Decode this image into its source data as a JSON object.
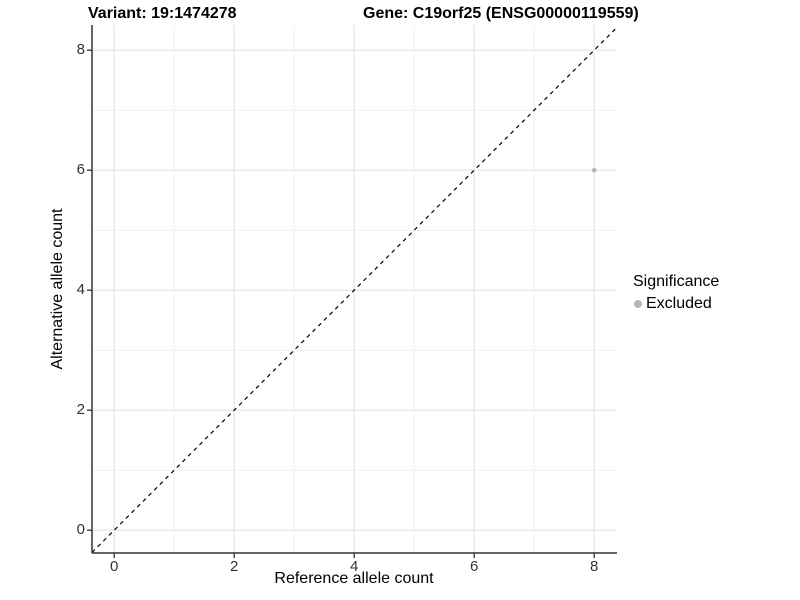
{
  "titles": {
    "variant": "Variant: 19:1474278",
    "gene": "Gene: C19orf25 (ENSG00000119559)"
  },
  "chart_data": {
    "type": "scatter",
    "title_left": "Variant: 19:1474278",
    "title_right": "Gene: C19orf25 (ENSG00000119559)",
    "xlabel": "Reference allele count",
    "ylabel": "Alternative allele count",
    "xlim": [
      -0.37,
      8.38
    ],
    "ylim": [
      -0.38,
      8.42
    ],
    "x_major_ticks": [
      0,
      2,
      4,
      6,
      8
    ],
    "y_major_ticks": [
      0,
      2,
      4,
      6,
      8
    ],
    "x_minor_ticks": [
      1,
      3,
      5,
      7
    ],
    "y_minor_ticks": [
      1,
      3,
      5,
      7
    ],
    "grid": true,
    "reference_line": {
      "type": "identity",
      "slope": 1,
      "intercept": 0,
      "style": "dashed",
      "color": "#000000"
    },
    "series": [
      {
        "name": "Excluded",
        "color": "#b5b5b5",
        "points": [
          {
            "x": 8,
            "y": 6
          }
        ]
      }
    ],
    "legend": {
      "title": "Significance",
      "position": "right",
      "entries": [
        {
          "label": "Excluded",
          "color": "#b5b5b5"
        }
      ]
    }
  },
  "colors": {
    "axis_line": "#333333",
    "tick_mark": "#333333",
    "tick_label": "#333333",
    "grid_major": "#e2e2e2",
    "grid_minor": "#efefef",
    "point": "#b5b5b5",
    "background": "#ffffff"
  }
}
